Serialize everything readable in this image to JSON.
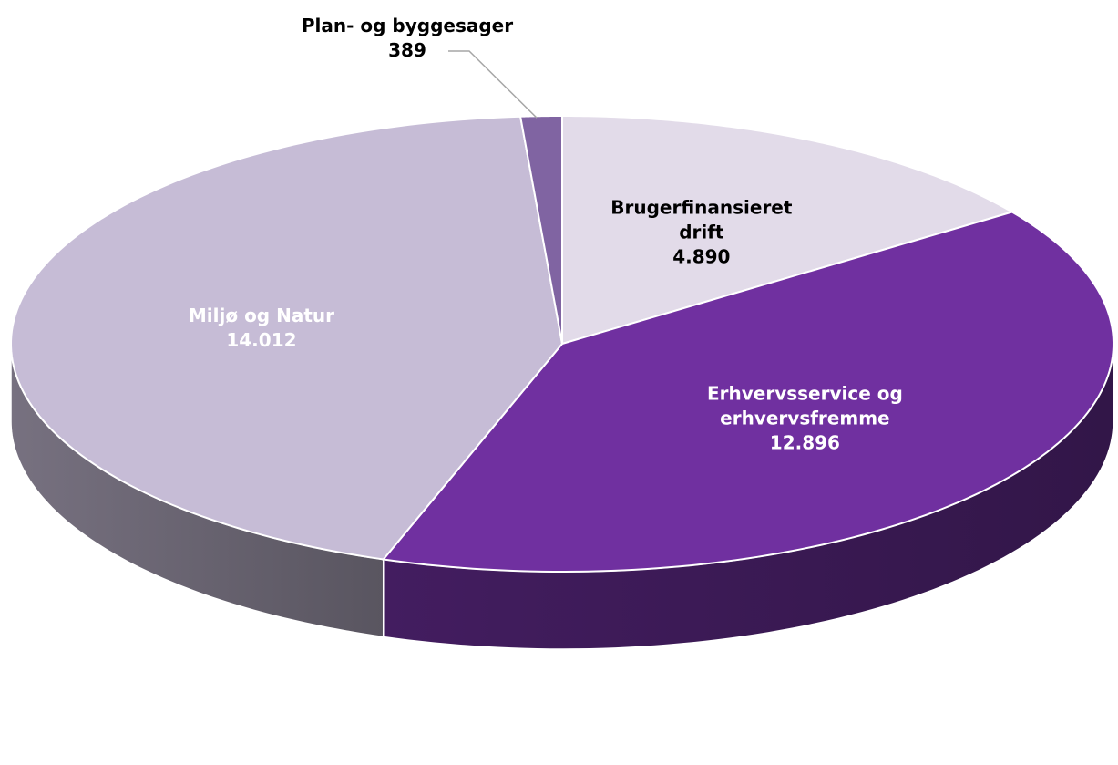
{
  "chart_data": {
    "type": "pie",
    "categories": [
      "Brugerfinansieret drift",
      "Erhvervsservice og erhvervsfremme",
      "Miljø og Natur",
      "Plan- og byggesager"
    ],
    "values": [
      4890,
      12896,
      14012,
      389
    ],
    "value_labels": [
      "4.890",
      "12.896",
      "14.012",
      "389"
    ],
    "colors": [
      "#e2dbe9",
      "#7030a0",
      "#c6bcd6",
      "#8064a2"
    ],
    "label_colors": [
      "#000000",
      "#ffffff",
      "#ffffff",
      "#000000"
    ]
  }
}
